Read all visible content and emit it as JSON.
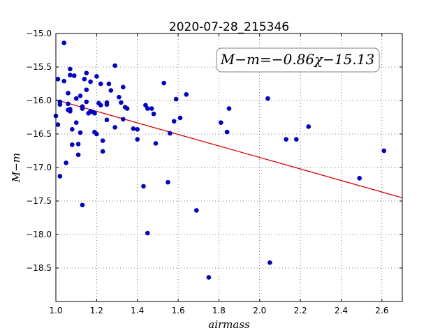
{
  "chart_data": {
    "type": "scatter",
    "title": "2020-07-28_215346",
    "xlabel": "airmass",
    "ylabel": "M−m",
    "xlim": [
      1.0,
      2.7
    ],
    "ylim": [
      -15.0,
      -19.0
    ],
    "y_inverted": true,
    "grid": true,
    "x_ticks": [
      1.0,
      1.2,
      1.4,
      1.6,
      1.8,
      2.0,
      2.2,
      2.4,
      2.6
    ],
    "x_tick_labels": [
      "1.0",
      "1.2",
      "1.4",
      "1.6",
      "1.8",
      "2.0",
      "2.2",
      "2.4",
      "2.6"
    ],
    "y_ticks": [
      -15.0,
      -15.5,
      -16.0,
      -16.5,
      -17.0,
      -17.5,
      -18.0,
      -18.5
    ],
    "y_tick_labels": [
      "−15.0",
      "−15.5",
      "−16.0",
      "−16.5",
      "−17.0",
      "−17.5",
      "−18.0",
      "−18.5"
    ],
    "annotation": "M−m=−0.86χ−15.13",
    "fit": {
      "slope": -0.86,
      "intercept": -15.13,
      "color": "#dd0000"
    },
    "marker_color": "#0000cc",
    "points": [
      {
        "x": 1.0,
        "y": -16.23
      },
      {
        "x": 1.01,
        "y": -16.36
      },
      {
        "x": 1.01,
        "y": -15.68
      },
      {
        "x": 1.02,
        "y": -16.02
      },
      {
        "x": 1.02,
        "y": -16.06
      },
      {
        "x": 1.02,
        "y": -17.13
      },
      {
        "x": 1.04,
        "y": -15.71
      },
      {
        "x": 1.04,
        "y": -15.14
      },
      {
        "x": 1.05,
        "y": -16.93
      },
      {
        "x": 1.06,
        "y": -15.89
      },
      {
        "x": 1.06,
        "y": -16.14
      },
      {
        "x": 1.06,
        "y": -16.05
      },
      {
        "x": 1.07,
        "y": -16.13
      },
      {
        "x": 1.07,
        "y": -16.16
      },
      {
        "x": 1.07,
        "y": -15.53
      },
      {
        "x": 1.07,
        "y": -15.62
      },
      {
        "x": 1.08,
        "y": -16.43
      },
      {
        "x": 1.08,
        "y": -16.66
      },
      {
        "x": 1.09,
        "y": -15.63
      },
      {
        "x": 1.1,
        "y": -16.33
      },
      {
        "x": 1.1,
        "y": -15.97
      },
      {
        "x": 1.11,
        "y": -16.65
      },
      {
        "x": 1.11,
        "y": -16.81
      },
      {
        "x": 1.12,
        "y": -16.48
      },
      {
        "x": 1.12,
        "y": -15.93
      },
      {
        "x": 1.13,
        "y": -16.09
      },
      {
        "x": 1.13,
        "y": -16.12
      },
      {
        "x": 1.13,
        "y": -17.56
      },
      {
        "x": 1.14,
        "y": -15.68
      },
      {
        "x": 1.15,
        "y": -15.84
      },
      {
        "x": 1.15,
        "y": -15.59
      },
      {
        "x": 1.15,
        "y": -16.02
      },
      {
        "x": 1.16,
        "y": -16.19
      },
      {
        "x": 1.17,
        "y": -16.16
      },
      {
        "x": 1.17,
        "y": -15.72
      },
      {
        "x": 1.18,
        "y": -16.17
      },
      {
        "x": 1.19,
        "y": -16.47
      },
      {
        "x": 1.19,
        "y": -16.19
      },
      {
        "x": 1.2,
        "y": -16.5
      },
      {
        "x": 1.2,
        "y": -15.64
      },
      {
        "x": 1.21,
        "y": -16.04
      },
      {
        "x": 1.22,
        "y": -16.07
      },
      {
        "x": 1.22,
        "y": -15.75
      },
      {
        "x": 1.23,
        "y": -16.6
      },
      {
        "x": 1.23,
        "y": -16.76
      },
      {
        "x": 1.25,
        "y": -16.03
      },
      {
        "x": 1.25,
        "y": -16.06
      },
      {
        "x": 1.25,
        "y": -16.29
      },
      {
        "x": 1.26,
        "y": -15.75
      },
      {
        "x": 1.27,
        "y": -15.85
      },
      {
        "x": 1.29,
        "y": -15.48
      },
      {
        "x": 1.29,
        "y": -16.4
      },
      {
        "x": 1.31,
        "y": -15.95
      },
      {
        "x": 1.32,
        "y": -16.03
      },
      {
        "x": 1.33,
        "y": -15.8
      },
      {
        "x": 1.33,
        "y": -16.28
      },
      {
        "x": 1.34,
        "y": -16.1
      },
      {
        "x": 1.35,
        "y": -16.12
      },
      {
        "x": 1.38,
        "y": -16.42
      },
      {
        "x": 1.4,
        "y": -16.43
      },
      {
        "x": 1.4,
        "y": -16.58
      },
      {
        "x": 1.43,
        "y": -17.28
      },
      {
        "x": 1.44,
        "y": -16.07
      },
      {
        "x": 1.45,
        "y": -16.12
      },
      {
        "x": 1.45,
        "y": -17.98
      },
      {
        "x": 1.47,
        "y": -16.12
      },
      {
        "x": 1.48,
        "y": -16.2
      },
      {
        "x": 1.49,
        "y": -16.64
      },
      {
        "x": 1.53,
        "y": -15.74
      },
      {
        "x": 1.55,
        "y": -17.22
      },
      {
        "x": 1.56,
        "y": -16.49
      },
      {
        "x": 1.58,
        "y": -16.31
      },
      {
        "x": 1.59,
        "y": -15.98
      },
      {
        "x": 1.61,
        "y": -16.26
      },
      {
        "x": 1.64,
        "y": -15.91
      },
      {
        "x": 1.69,
        "y": -17.64
      },
      {
        "x": 1.75,
        "y": -18.64
      },
      {
        "x": 1.81,
        "y": -16.33
      },
      {
        "x": 1.84,
        "y": -16.47
      },
      {
        "x": 1.85,
        "y": -16.12
      },
      {
        "x": 2.04,
        "y": -15.97
      },
      {
        "x": 2.05,
        "y": -18.42
      },
      {
        "x": 2.13,
        "y": -16.58
      },
      {
        "x": 2.18,
        "y": -16.58
      },
      {
        "x": 2.24,
        "y": -16.39
      },
      {
        "x": 2.49,
        "y": -17.16
      },
      {
        "x": 2.61,
        "y": -16.75
      }
    ]
  }
}
